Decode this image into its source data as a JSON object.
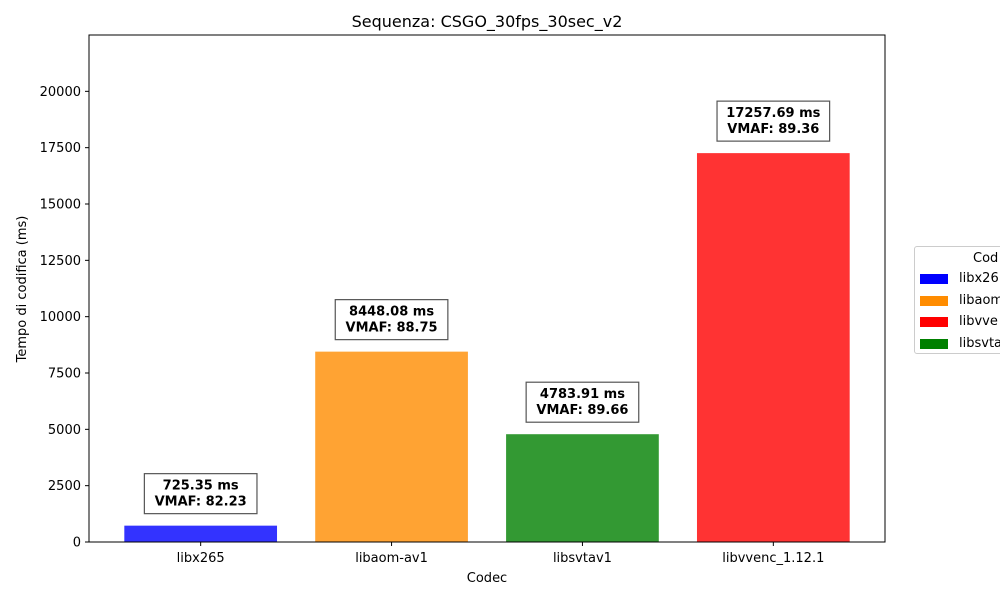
{
  "chart_data": {
    "type": "bar",
    "title": "Sequenza: CSGO_30fps_30sec_v2",
    "xlabel": "Codec",
    "ylabel": "Tempo di codifica (ms)",
    "categories": [
      "libx265",
      "libaom-av1",
      "libsvtav1",
      "libvvenc_1.12.1"
    ],
    "values": [
      725.35,
      8448.08,
      4783.91,
      17257.69
    ],
    "vmaf": [
      82.23,
      88.75,
      89.66,
      89.36
    ],
    "annotations": [
      "725.35 ms\nVMAF: 82.23",
      "8448.08 ms\nVMAF: 88.75",
      "4783.91 ms\nVMAF: 89.66",
      "17257.69 ms\nVMAF: 89.36"
    ],
    "bar_colors": [
      "#3333ff",
      "#ffa333",
      "#339933",
      "#ff3333"
    ],
    "ylim": [
      0,
      22500
    ],
    "yticks": [
      0,
      2500,
      5000,
      7500,
      10000,
      12500,
      15000,
      17500,
      20000
    ],
    "ytick_labels": [
      "0",
      "2500",
      "5000",
      "7500",
      "10000",
      "12500",
      "15000",
      "17500",
      "20000"
    ],
    "grid": false,
    "legend": {
      "title": "Cod",
      "placement": "outside-right",
      "entries": [
        {
          "label": "libx26",
          "color": "#0000ff"
        },
        {
          "label": "libaom",
          "color": "#ff8c00"
        },
        {
          "label": "libvve",
          "color": "#ff0000"
        },
        {
          "label": "libsvta",
          "color": "#008000"
        }
      ]
    }
  }
}
